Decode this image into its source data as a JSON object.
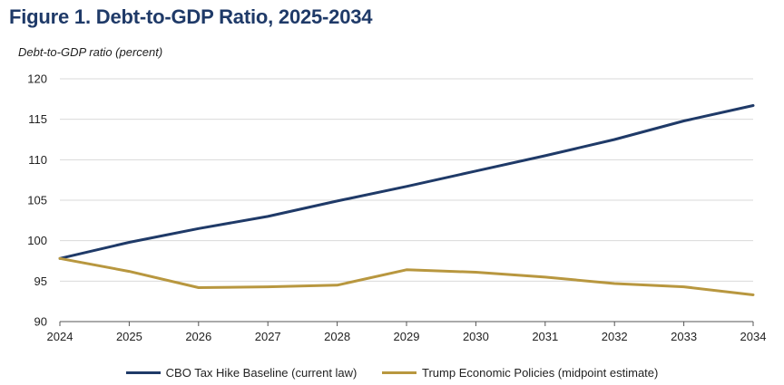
{
  "chart_data": {
    "type": "line",
    "title": "Figure 1. Debt-to-GDP Ratio, 2025-2034",
    "ylabel": "Debt-to-GDP ratio (percent)",
    "xlabel": "",
    "x": [
      2024,
      2025,
      2026,
      2027,
      2028,
      2029,
      2030,
      2031,
      2032,
      2033,
      2034
    ],
    "x_tick_labels": [
      "2024",
      "2025",
      "2026",
      "2027",
      "2028",
      "2029",
      "2030",
      "2031",
      "2032",
      "2033",
      "2034"
    ],
    "ylim": [
      90,
      120
    ],
    "y_ticks": [
      90,
      95,
      100,
      105,
      110,
      115,
      120
    ],
    "y_tick_labels": [
      "90",
      "95",
      "100",
      "105",
      "110",
      "115",
      "120"
    ],
    "grid": true,
    "legend_position": "bottom",
    "series": [
      {
        "name": "CBO Tax Hike Baseline (current law)",
        "color": "#1f3a68",
        "values": [
          97.8,
          99.8,
          101.5,
          103.0,
          104.9,
          106.7,
          108.6,
          110.5,
          112.5,
          114.8,
          116.7
        ]
      },
      {
        "name": "Trump Economic Policies (midpoint estimate)",
        "color": "#b8973f",
        "values": [
          97.8,
          96.2,
          94.2,
          94.3,
          94.5,
          96.4,
          96.1,
          95.5,
          94.7,
          94.3,
          93.3
        ]
      }
    ]
  }
}
